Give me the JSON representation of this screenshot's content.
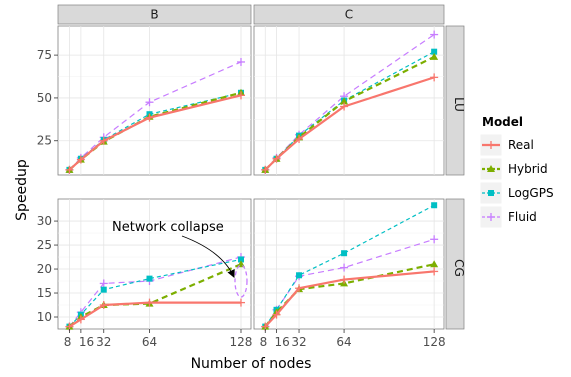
{
  "chart_data": {
    "type": "line",
    "xlabel": "Number of nodes",
    "ylabel": "Speedup",
    "x_ticks": [
      8,
      16,
      32,
      64,
      128
    ],
    "x_tick_labels": [
      "8",
      "16",
      "32",
      "64",
      "128"
    ],
    "col_facets": [
      "B",
      "C"
    ],
    "row_facets": [
      "LU",
      "CG"
    ],
    "rows": {
      "LU": {
        "ylim": [
          5,
          92
        ],
        "yticks": [
          25,
          50,
          75
        ]
      },
      "CG": {
        "ylim": [
          7.5,
          34.6
        ],
        "yticks": [
          10,
          15,
          20,
          25,
          30
        ]
      }
    },
    "legend": {
      "title": "Model",
      "entries": [
        "Real",
        "Hybrid",
        "LogGPS",
        "Fluid"
      ]
    },
    "series_styles": {
      "Real": {
        "color": "#F8766D",
        "dash": "",
        "width": 2.2,
        "marker": "plus"
      },
      "Hybrid": {
        "color": "#7CAE00",
        "dash": "6,4",
        "width": 2.2,
        "marker": "triangle"
      },
      "LogGPS": {
        "color": "#00BFC4",
        "dash": "4,3",
        "width": 1.2,
        "marker": "square"
      },
      "Fluid": {
        "color": "#C77CFF",
        "dash": "6,4",
        "width": 1.2,
        "marker": "plus"
      }
    },
    "panels": [
      {
        "row": "LU",
        "col": "B",
        "series": [
          {
            "name": "Real",
            "values": [
              8,
              14,
              25,
              38.5,
              51.5
            ]
          },
          {
            "name": "Hybrid",
            "values": [
              8,
              14,
              24.5,
              39,
              53
            ]
          },
          {
            "name": "LogGPS",
            "values": [
              8,
              14.5,
              25.5,
              40.5,
              53
            ]
          },
          {
            "name": "Fluid",
            "values": [
              8,
              15,
              27,
              47.5,
              71
            ]
          }
        ]
      },
      {
        "row": "LU",
        "col": "C",
        "series": [
          {
            "name": "Real",
            "values": [
              8,
              14.5,
              26,
              45,
              62
            ]
          },
          {
            "name": "Hybrid",
            "values": [
              8,
              14.5,
              27,
              48,
              74
            ]
          },
          {
            "name": "LogGPS",
            "values": [
              8,
              14.5,
              28,
              48.5,
              77
            ]
          },
          {
            "name": "Fluid",
            "values": [
              8,
              15,
              28.5,
              51,
              87
            ]
          }
        ]
      },
      {
        "row": "CG",
        "col": "B",
        "series": [
          {
            "name": "Real",
            "values": [
              8,
              9.5,
              12.5,
              13,
              13
            ]
          },
          {
            "name": "Hybrid",
            "values": [
              8,
              10,
              12.5,
              12.8,
              21
            ]
          },
          {
            "name": "LogGPS",
            "values": [
              8,
              10.5,
              15.7,
              18,
              22
            ]
          },
          {
            "name": "Fluid",
            "values": [
              8,
              11,
              17,
              17.5,
              22.5
            ]
          }
        ]
      },
      {
        "row": "CG",
        "col": "C",
        "series": [
          {
            "name": "Real",
            "values": [
              8,
              10.5,
              16,
              17.8,
              19.5
            ]
          },
          {
            "name": "Hybrid",
            "values": [
              8,
              11,
              15.8,
              17,
              21
            ]
          },
          {
            "name": "LogGPS",
            "values": [
              8,
              11.5,
              18.7,
              23.3,
              33.3
            ]
          },
          {
            "name": "Fluid",
            "values": [
              8,
              11.5,
              18.5,
              20.3,
              26.2
            ]
          }
        ]
      }
    ],
    "annotation": {
      "text": "Network collapse",
      "panel_row": "CG",
      "panel_col": "B",
      "points_to": {
        "x": 128,
        "y": 17.5
      }
    }
  }
}
